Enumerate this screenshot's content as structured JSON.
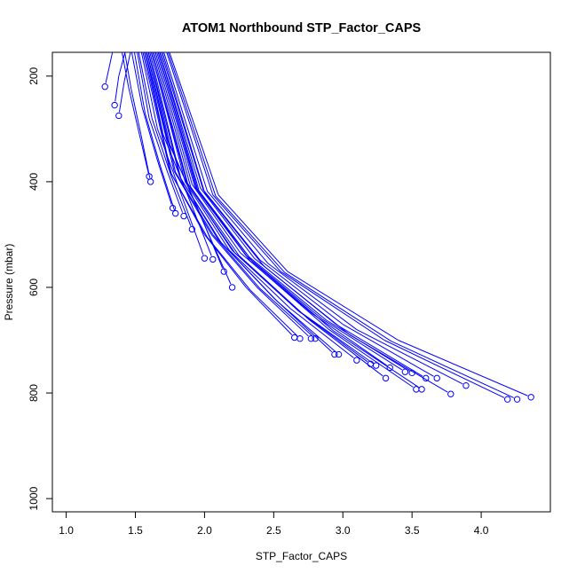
{
  "chart_data": {
    "type": "line",
    "title": "ATOM1 Northbound STP_Factor_CAPS",
    "xlabel": "STP_Factor_CAPS",
    "ylabel": "Pressure (mbar)",
    "xlim": [
      0.9,
      4.5
    ],
    "ylim": [
      1025,
      155
    ],
    "y_reversed": true,
    "x_ticks": [
      "1.0",
      "1.5",
      "2.0",
      "2.5",
      "3.0",
      "3.5",
      "4.0"
    ],
    "y_ticks": [
      "200",
      "400",
      "600",
      "800",
      "1000"
    ],
    "grid": false,
    "legend": "none",
    "line_color": "#0000ff",
    "marker": "open-circle",
    "series": [
      {
        "x": [
          1.28,
          1.33,
          1.38,
          1.48
        ],
        "y": [
          220,
          160,
          100,
          20
        ]
      },
      {
        "x": [
          1.35,
          1.38,
          1.42,
          1.52
        ],
        "y": [
          255,
          200,
          160,
          60
        ]
      },
      {
        "x": [
          1.38,
          1.42,
          1.46,
          1.55
        ],
        "y": [
          275,
          210,
          160,
          60
        ]
      },
      {
        "x": [
          1.6,
          1.52,
          1.45,
          1.4
        ],
        "y": [
          390,
          300,
          220,
          150
        ]
      },
      {
        "x": [
          1.61,
          1.54,
          1.47,
          1.42
        ],
        "y": [
          400,
          310,
          225,
          150
        ]
      },
      {
        "x": [
          1.77,
          1.66,
          1.55,
          1.47
        ],
        "y": [
          450,
          360,
          260,
          150
        ]
      },
      {
        "x": [
          1.79,
          1.68,
          1.57,
          1.49
        ],
        "y": [
          460,
          370,
          270,
          150
        ]
      },
      {
        "x": [
          1.85,
          1.73,
          1.6,
          1.51
        ],
        "y": [
          465,
          380,
          280,
          150
        ]
      },
      {
        "x": [
          1.91,
          1.76,
          1.62,
          1.52
        ],
        "y": [
          490,
          390,
          280,
          150
        ]
      },
      {
        "x": [
          2.0,
          1.84,
          1.66,
          1.54
        ],
        "y": [
          545,
          430,
          300,
          150
        ]
      },
      {
        "x": [
          2.06,
          1.9,
          1.7,
          1.57
        ],
        "y": [
          547,
          440,
          310,
          150
        ]
      },
      {
        "x": [
          2.14,
          1.95,
          1.73,
          1.58
        ],
        "y": [
          570,
          450,
          320,
          150
        ]
      },
      {
        "x": [
          2.2,
          1.98,
          1.75,
          1.59
        ],
        "y": [
          600,
          470,
          330,
          150
        ]
      },
      {
        "x": [
          2.65,
          2.3,
          2.0,
          1.75,
          1.55
        ],
        "y": [
          695,
          600,
          500,
          380,
          150
        ]
      },
      {
        "x": [
          2.69,
          2.33,
          2.02,
          1.76,
          1.56
        ],
        "y": [
          697,
          605,
          505,
          385,
          150
        ]
      },
      {
        "x": [
          2.77,
          2.38,
          2.05,
          1.78,
          1.57
        ],
        "y": [
          697,
          600,
          500,
          380,
          150
        ]
      },
      {
        "x": [
          2.8,
          2.4,
          2.06,
          1.79,
          1.58
        ],
        "y": [
          697,
          602,
          500,
          382,
          150
        ]
      },
      {
        "x": [
          2.94,
          2.5,
          2.1,
          1.82,
          1.59
        ],
        "y": [
          727,
          620,
          510,
          390,
          150
        ]
      },
      {
        "x": [
          2.97,
          2.52,
          2.12,
          1.83,
          1.6
        ],
        "y": [
          727,
          625,
          515,
          395,
          150
        ]
      },
      {
        "x": [
          3.1,
          2.62,
          2.18,
          1.86,
          1.61
        ],
        "y": [
          738,
          640,
          530,
          400,
          150
        ]
      },
      {
        "x": [
          3.2,
          2.68,
          2.2,
          1.87,
          1.61
        ],
        "y": [
          745,
          645,
          530,
          400,
          150
        ]
      },
      {
        "x": [
          3.24,
          2.7,
          2.22,
          1.88,
          1.62
        ],
        "y": [
          748,
          648,
          535,
          405,
          150
        ]
      },
      {
        "x": [
          3.31,
          2.75,
          2.25,
          1.9,
          1.63
        ],
        "y": [
          772,
          660,
          540,
          410,
          150
        ]
      },
      {
        "x": [
          3.34,
          2.78,
          2.26,
          1.91,
          1.64
        ],
        "y": [
          752,
          650,
          535,
          405,
          150
        ]
      },
      {
        "x": [
          3.45,
          2.85,
          2.3,
          1.93,
          1.65
        ],
        "y": [
          760,
          660,
          540,
          410,
          150
        ]
      },
      {
        "x": [
          3.5,
          2.88,
          2.32,
          1.94,
          1.66
        ],
        "y": [
          762,
          662,
          542,
          412,
          150
        ]
      },
      {
        "x": [
          3.53,
          2.9,
          2.33,
          1.95,
          1.66
        ],
        "y": [
          793,
          680,
          550,
          415,
          150
        ]
      },
      {
        "x": [
          3.57,
          2.93,
          2.35,
          1.96,
          1.67
        ],
        "y": [
          793,
          682,
          552,
          417,
          150
        ]
      },
      {
        "x": [
          3.6,
          2.95,
          2.36,
          1.97,
          1.67
        ],
        "y": [
          772,
          670,
          545,
          412,
          150
        ]
      },
      {
        "x": [
          3.68,
          3.0,
          2.4,
          1.99,
          1.68
        ],
        "y": [
          772,
          670,
          548,
          415,
          150
        ]
      },
      {
        "x": [
          3.78,
          3.05,
          2.43,
          2.0,
          1.69
        ],
        "y": [
          802,
          690,
          560,
          420,
          150
        ]
      },
      {
        "x": [
          3.89,
          3.1,
          2.46,
          2.02,
          1.7
        ],
        "y": [
          786,
          680,
          555,
          418,
          150
        ]
      },
      {
        "x": [
          4.19,
          3.3,
          2.55,
          2.06,
          1.72
        ],
        "y": [
          812,
          700,
          570,
          425,
          150
        ]
      },
      {
        "x": [
          4.26,
          3.35,
          2.58,
          2.08,
          1.73
        ],
        "y": [
          812,
          702,
          572,
          427,
          150
        ]
      },
      {
        "x": [
          4.36,
          3.4,
          2.6,
          2.1,
          1.74
        ],
        "y": [
          808,
          700,
          570,
          425,
          150
        ]
      }
    ]
  }
}
